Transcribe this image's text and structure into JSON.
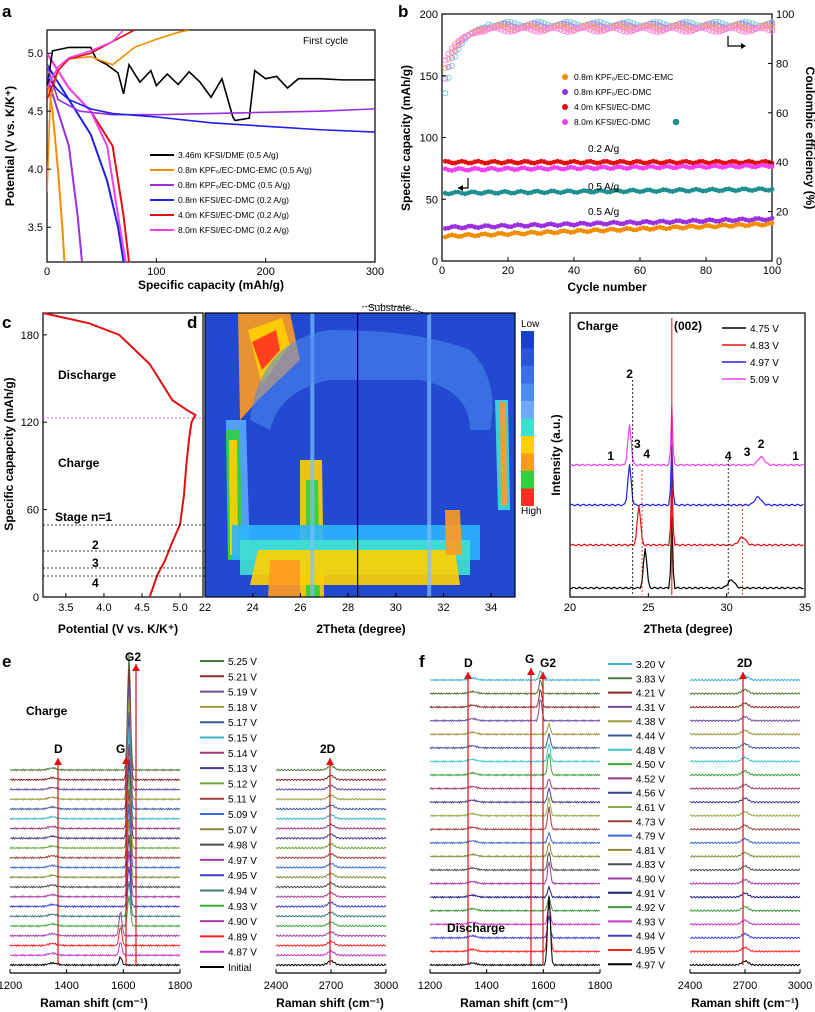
{
  "colors": {
    "black": "#000000",
    "orange": "#f28c00",
    "purple": "#9a30e0",
    "blue": "#1f1fe6",
    "red": "#e01010",
    "magenta": "#f040f0",
    "teal": "#1f8f8f",
    "pink": "#ff44cc"
  },
  "chart_data": [
    {
      "id": "a",
      "type": "line",
      "panel_label": "a",
      "title": "First cycle",
      "xlabel": "Specific capacity (mAh/g)",
      "ylabel": "Potential (V vs. K/K⁺)",
      "xlim": [
        0,
        300
      ],
      "ylim": [
        3.2,
        5.2
      ],
      "xticks": [
        "0",
        "100",
        "200",
        "300"
      ],
      "yticks": [
        "3.5",
        "4.0",
        "4.5",
        "5.0"
      ],
      "series": [
        {
          "name": "3.46m KFSI/DME (0.5 A/g)",
          "color": "#000000",
          "x": [
            0,
            5,
            20,
            40,
            45,
            55,
            65,
            70,
            75,
            85,
            95,
            100,
            110,
            120,
            130,
            140,
            150,
            160,
            170,
            172,
            185,
            190,
            200,
            210,
            220,
            230,
            250,
            270,
            300
          ],
          "y": [
            4.7,
            5.02,
            5.05,
            5.05,
            4.95,
            4.9,
            4.83,
            4.65,
            4.9,
            4.75,
            4.85,
            4.72,
            4.82,
            4.73,
            4.84,
            4.75,
            4.62,
            4.78,
            4.45,
            4.42,
            4.44,
            4.85,
            4.78,
            4.8,
            4.7,
            4.78,
            4.78,
            4.77,
            4.77
          ]
        },
        {
          "name": "0.8m KPF₆/EC-DMC-EMC (0.5 A/g)",
          "color": "#f28c00",
          "x": [
            0,
            3,
            10,
            20,
            40,
            60,
            80,
            100,
            120,
            130
          ],
          "y": [
            3.8,
            4.6,
            4.85,
            4.95,
            4.97,
            4.9,
            5.05,
            5.12,
            5.18,
            5.2
          ]
        },
        {
          "name": "0.8m KPF₆/EC-DMC (0.5 A/g)",
          "color": "#9a30e0",
          "x": [
            0,
            10,
            30,
            60,
            100,
            150,
            200,
            250,
            300
          ],
          "y": [
            4.9,
            4.6,
            4.5,
            4.47,
            4.47,
            4.48,
            4.49,
            4.5,
            4.52
          ]
        },
        {
          "name": "0.8m KFSI/EC-DMC  (0.2 A/g)",
          "color": "#1f1fe6",
          "x": [
            0,
            10,
            20,
            40,
            60,
            100,
            150,
            200,
            250,
            300
          ],
          "y": [
            4.8,
            4.68,
            4.6,
            4.52,
            4.48,
            4.45,
            4.4,
            4.37,
            4.34,
            4.32
          ]
        },
        {
          "name": "4.0m KFSI/EC-DMC  (0.2 A/g)",
          "color": "#e01010",
          "x": [
            0,
            10,
            20,
            40,
            60,
            80
          ],
          "y": [
            4.6,
            4.85,
            4.95,
            5.0,
            5.1,
            5.2
          ]
        },
        {
          "name": "8.0m KFSI/EC-DMC  (0.2 A/g)",
          "color": "#f040f0",
          "x": [
            0,
            10,
            20,
            40,
            60,
            70
          ],
          "y": [
            4.7,
            4.88,
            4.96,
            5.02,
            5.1,
            5.2
          ]
        }
      ],
      "discharge_curves": [
        {
          "color": "#f28c00",
          "x": [
            0,
            5,
            10,
            14,
            16
          ],
          "y": [
            4.8,
            4.5,
            4.0,
            3.5,
            3.2
          ]
        },
        {
          "color": "#9a30e0",
          "x": [
            0,
            10,
            20,
            28,
            32
          ],
          "y": [
            4.8,
            4.5,
            4.2,
            3.6,
            3.2
          ]
        },
        {
          "color": "#1f1fe6",
          "x": [
            0,
            20,
            40,
            55,
            65,
            70
          ],
          "y": [
            4.9,
            4.6,
            4.3,
            3.9,
            3.5,
            3.2
          ]
        },
        {
          "color": "#e01010",
          "x": [
            0,
            20,
            40,
            60,
            70,
            75
          ],
          "y": [
            5.0,
            4.7,
            4.5,
            4.2,
            3.6,
            3.2
          ]
        },
        {
          "color": "#f040f0",
          "x": [
            0,
            20,
            40,
            55,
            65,
            72
          ],
          "y": [
            5.0,
            4.7,
            4.5,
            4.2,
            3.6,
            3.2
          ]
        }
      ]
    },
    {
      "id": "b",
      "type": "scatter",
      "panel_label": "b",
      "xlabel": "Cycle number",
      "ylabel": "Specific capacity (mAh/g)",
      "y2label": "Coulombic efficiency (%)",
      "xlim": [
        0,
        100
      ],
      "ylim": [
        0,
        200
      ],
      "y2lim": [
        0,
        100
      ],
      "xticks": [
        "0",
        "20",
        "40",
        "60",
        "80",
        "100"
      ],
      "yticks": [
        "0",
        "50",
        "100",
        "150",
        "200"
      ],
      "y2ticks": [
        "0",
        "20",
        "40",
        "60",
        "80",
        "100"
      ],
      "legend": [
        "0.8m KPF₆/EC-DMC-EMC",
        "0.8m KPF₆/EC-DMC",
        "4.0m KFSI/EC-DMC",
        "8.0m KFSI/EC-DMC"
      ],
      "annotations": [
        "0.2 A/g",
        "0.5 A/g",
        "0.5 A/g"
      ],
      "series": [
        {
          "name": "4.0m KFSI/EC-DMC capacity",
          "color": "#e01010",
          "start": 80,
          "end": 80
        },
        {
          "name": "8.0m KFSI/EC-DMC capacity",
          "color": "#f040f0",
          "start": 74,
          "end": 77
        },
        {
          "name": "4.0m KFSI/EC-DMC (0.5 A/g) capacity",
          "color": "#1f8f8f",
          "start": 55,
          "end": 58
        },
        {
          "name": "0.8m KPF₆/EC-DMC capacity",
          "color": "#9a30e0",
          "start": 27,
          "end": 34
        },
        {
          "name": "0.8m KPF₆/EC-DMC-EMC capacity",
          "color": "#f28c00",
          "start": 20,
          "end": 30
        }
      ]
    },
    {
      "id": "c",
      "type": "line",
      "panel_label": "c",
      "xlabel": "Potential (V vs. K/K⁺)",
      "ylabel": "Specific capapcity (mAh/g)",
      "xlim": [
        3.2,
        5.3
      ],
      "ylim": [
        0,
        195
      ],
      "xticks": [
        "3.5",
        "4.0",
        "4.5",
        "5.0"
      ],
      "yticks": [
        "0",
        "60",
        "120",
        "180"
      ],
      "labels": [
        "Discharge",
        "Charge",
        "Stage n=1",
        "2",
        "3",
        "4"
      ],
      "x": [
        4.6,
        4.7,
        4.8,
        4.9,
        5.0,
        5.05,
        5.08,
        5.12,
        5.15,
        5.2,
        5.1,
        4.9,
        4.6,
        4.2,
        3.8,
        3.2
      ],
      "y": [
        0,
        15,
        25,
        38,
        50,
        70,
        90,
        110,
        120,
        125,
        128,
        135,
        160,
        180,
        188,
        195
      ]
    },
    {
      "id": "d",
      "type": "heatmap",
      "panel_label": "d",
      "xlabel": "2Theta (degree)",
      "xlim": [
        22,
        35
      ],
      "xticks": [
        "22",
        "24",
        "26",
        "28",
        "30",
        "32",
        "34"
      ],
      "colorbar": [
        "Low",
        "High"
      ],
      "annotation": "Substrate"
    },
    {
      "id": "d2",
      "type": "line",
      "xlabel": "2Theta (degree)",
      "ylabel": "Intensity (a.u.)",
      "xlim": [
        20,
        35
      ],
      "xticks": [
        "20",
        "25",
        "30",
        "35"
      ],
      "title": "Charge",
      "peak_label": "(002)",
      "legend": [
        {
          "name": "4.75 V",
          "color": "#000000"
        },
        {
          "name": "4.83 V",
          "color": "#e01010"
        },
        {
          "name": "4.97 V",
          "color": "#1f1fe6"
        },
        {
          "name": "5.09 V",
          "color": "#f040f0"
        }
      ],
      "markers": [
        "1",
        "2",
        "3",
        "4",
        "4",
        "3",
        "2",
        "1"
      ]
    },
    {
      "id": "e",
      "type": "line",
      "panel_label": "e",
      "title": "Charge",
      "xlabel": "Raman shift (cm⁻¹)",
      "xticks_left": [
        "1200",
        "1400",
        "1600",
        "1800"
      ],
      "xticks_right": [
        "2400",
        "2700",
        "3000"
      ],
      "peaks": [
        "D",
        "G",
        "G2",
        "2D"
      ],
      "legend": [
        "5.25 V",
        "5.21 V",
        "5.19 V",
        "5.18 V",
        "5.17 V",
        "5.15 V",
        "5.14 V",
        "5.13 V",
        "5.12 V",
        "5.11 V",
        "5.09 V",
        "5.07 V",
        "4.98 V",
        "4.97 V",
        "4.95 V",
        "4.94 V",
        "4.93 V",
        "4.90 V",
        "4.89 V",
        "4.87 V",
        "Initial"
      ],
      "legend_colors": [
        "#4c7a3c",
        "#8c2a2a",
        "#6b4c9a",
        "#9a9a3c",
        "#3c5a9a",
        "#3cb4c8",
        "#9a3c7a",
        "#3c3c8c",
        "#6ba83c",
        "#a04040",
        "#3c6ad0",
        "#8a8a3c",
        "#4c4c4c",
        "#a03ca0",
        "#3c3cd0",
        "#3c7a7a",
        "#3caa3c",
        "#aa3caa",
        "#ff2020",
        "#cc33cc",
        "#000000"
      ]
    },
    {
      "id": "f",
      "type": "line",
      "panel_label": "f",
      "title": "Discharge",
      "xlabel": "Raman shift (cm⁻¹)",
      "xticks_left": [
        "1200",
        "1400",
        "1600",
        "1800"
      ],
      "xticks_right": [
        "2400",
        "2700",
        "3000"
      ],
      "peaks": [
        "D",
        "G",
        "G2",
        "2D"
      ],
      "legend": [
        "3.20 V",
        "3.83 V",
        "4.21 V",
        "4.31 V",
        "4.38 V",
        "4.44 V",
        "4.48 V",
        "4.50 V",
        "4.52 V",
        "4.56 V",
        "4.61 V",
        "4.73 V",
        "4.79 V",
        "4.81 V",
        "4.83 V",
        "4.90 V",
        "4.91 V",
        "4.92 V",
        "4.93 V",
        "4.94 V",
        "4.95 V",
        "4.97 V"
      ],
      "legend_colors": [
        "#3cb4d8",
        "#4c7a3c",
        "#8c2a2a",
        "#6b4c9a",
        "#9a9a3c",
        "#3c5a9a",
        "#3cc8d0",
        "#3ca03c",
        "#9a3c7a",
        "#3c3c8c",
        "#8ab03c",
        "#a04040",
        "#3c6ad0",
        "#8a8a3c",
        "#4c4c4c",
        "#a03ca0",
        "#1c1c7c",
        "#3c9a3c",
        "#cc33cc",
        "#3c3cd0",
        "#ff2020",
        "#000000"
      ]
    }
  ]
}
